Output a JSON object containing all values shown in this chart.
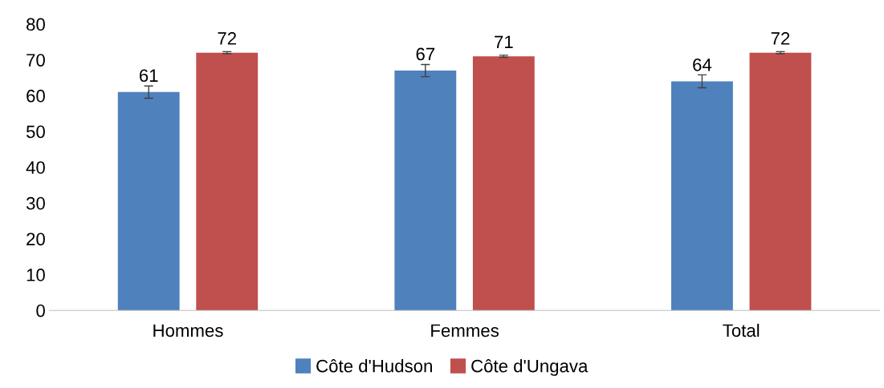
{
  "chart_data": {
    "type": "bar",
    "categories": [
      "Hommes",
      "Femmes",
      "Total"
    ],
    "series": [
      {
        "name": "Côte d'Hudson",
        "color": "#4f81bd",
        "values": [
          61,
          67,
          64
        ],
        "errors": [
          1.7,
          1.7,
          1.8
        ]
      },
      {
        "name": "Côte d'Ungava",
        "color": "#c0504d",
        "values": [
          72,
          71,
          72
        ],
        "errors": [
          0.3,
          0.3,
          0.3
        ]
      }
    ],
    "ylim": [
      0,
      80
    ],
    "yticks": [
      0,
      10,
      20,
      30,
      40,
      50,
      60,
      70,
      80
    ],
    "grid": false,
    "legend": "bottom",
    "data_labels": true
  }
}
